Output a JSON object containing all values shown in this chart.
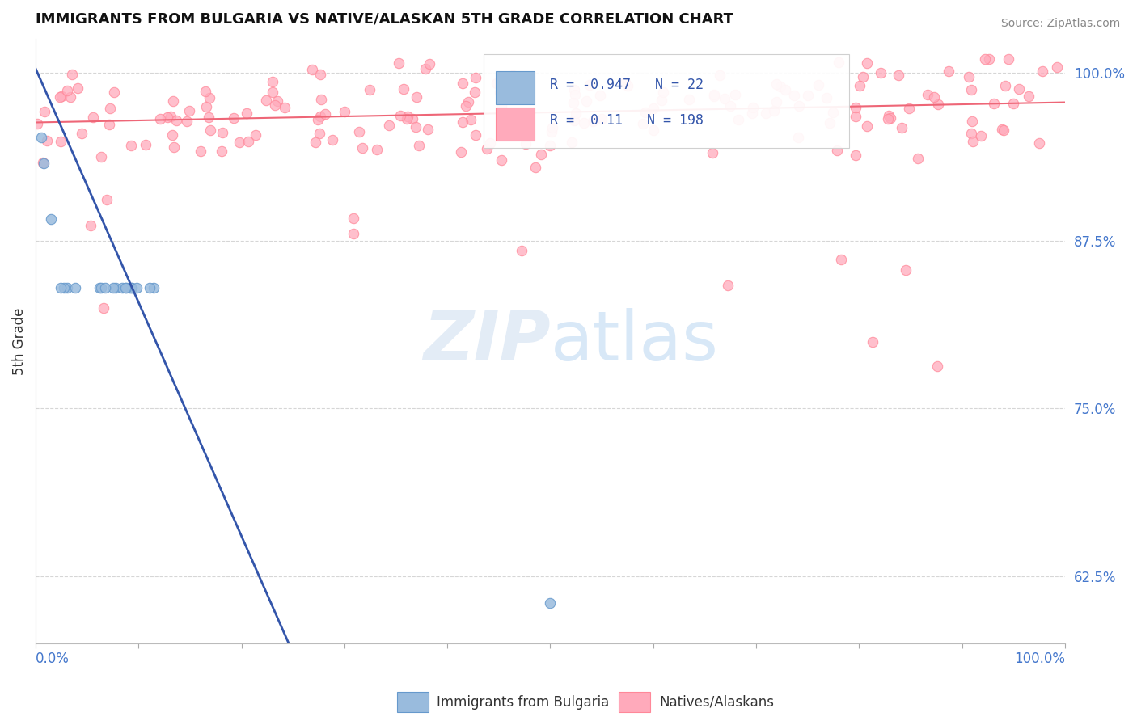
{
  "title": "IMMIGRANTS FROM BULGARIA VS NATIVE/ALASKAN 5TH GRADE CORRELATION CHART",
  "source": "Source: ZipAtlas.com",
  "ylabel": "5th Grade",
  "ytick_labels": [
    "62.5%",
    "75.0%",
    "87.5%",
    "100.0%"
  ],
  "ytick_values": [
    0.625,
    0.75,
    0.875,
    1.0
  ],
  "ylim": [
    0.575,
    1.025
  ],
  "xlim": [
    0.0,
    1.0
  ],
  "blue_R": -0.947,
  "blue_N": 22,
  "pink_R": 0.11,
  "pink_N": 198,
  "blue_color": "#99BBDD",
  "blue_edge_color": "#6699CC",
  "pink_color": "#FFAABB",
  "pink_edge_color": "#FF8899",
  "blue_line_color": "#3355AA",
  "pink_line_color": "#EE6677",
  "legend_label_blue": "Immigrants from Bulgaria",
  "legend_label_pink": "Natives/Alaskans",
  "watermark_zip": "ZIP",
  "watermark_atlas": "atlas",
  "scatter_size": 80
}
